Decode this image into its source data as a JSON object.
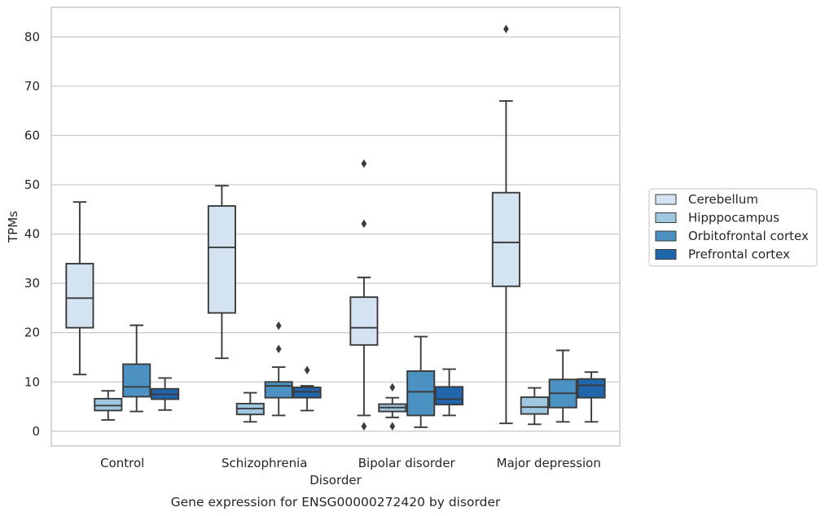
{
  "chart_data": {
    "type": "box",
    "caption": "Gene expression for ENSG00000272420 by disorder",
    "xlabel": "Disorder",
    "ylabel": "TPMs",
    "ylim": [
      -3,
      86
    ],
    "yticks": [
      0,
      10,
      20,
      30,
      40,
      50,
      60,
      70,
      80
    ],
    "categories": [
      "Control",
      "Schizophrenia",
      "Bipolar disorder",
      "Major depression"
    ],
    "legend_position": "right",
    "grid": true,
    "series": [
      {
        "name": "Cerebellum",
        "color": "#d3e3f2",
        "boxes": [
          {
            "wlo": 11.5,
            "q1": 21.0,
            "med": 27.0,
            "q3": 34.0,
            "whi": 46.5,
            "fliers": []
          },
          {
            "wlo": 14.8,
            "q1": 24.0,
            "med": 37.3,
            "q3": 45.7,
            "whi": 49.8,
            "fliers": []
          },
          {
            "wlo": 3.2,
            "q1": 17.5,
            "med": 21.0,
            "q3": 27.2,
            "whi": 31.2,
            "fliers": [
              54.3,
              42.1,
              1.0
            ]
          },
          {
            "wlo": 1.6,
            "q1": 29.4,
            "med": 38.3,
            "q3": 48.4,
            "whi": 67.0,
            "fliers": [
              81.6
            ]
          }
        ]
      },
      {
        "name": "Hipppocampus",
        "color": "#a0c7e0",
        "boxes": [
          {
            "wlo": 2.3,
            "q1": 4.2,
            "med": 5.2,
            "q3": 6.6,
            "whi": 8.2,
            "fliers": []
          },
          {
            "wlo": 1.9,
            "q1": 3.4,
            "med": 4.6,
            "q3": 5.6,
            "whi": 7.8,
            "fliers": []
          },
          {
            "wlo": 2.8,
            "q1": 4.0,
            "med": 4.8,
            "q3": 5.5,
            "whi": 6.8,
            "fliers": [
              8.9,
              1.0
            ]
          },
          {
            "wlo": 1.4,
            "q1": 3.5,
            "med": 4.9,
            "q3": 6.9,
            "whi": 8.8,
            "fliers": []
          }
        ]
      },
      {
        "name": "Orbitofrontal cortex",
        "color": "#4b92c3",
        "boxes": [
          {
            "wlo": 4.0,
            "q1": 7.0,
            "med": 9.0,
            "q3": 13.6,
            "whi": 21.5,
            "fliers": []
          },
          {
            "wlo": 3.2,
            "q1": 6.8,
            "med": 9.2,
            "q3": 10.0,
            "whi": 13.0,
            "fliers": [
              21.4,
              16.7
            ]
          },
          {
            "wlo": 0.8,
            "q1": 3.2,
            "med": 8.0,
            "q3": 12.2,
            "whi": 19.2,
            "fliers": []
          },
          {
            "wlo": 1.9,
            "q1": 4.8,
            "med": 7.7,
            "q3": 10.5,
            "whi": 16.4,
            "fliers": []
          }
        ]
      },
      {
        "name": "Prefrontal cortex",
        "color": "#2166ac",
        "boxes": [
          {
            "wlo": 4.3,
            "q1": 6.5,
            "med": 7.5,
            "q3": 8.6,
            "whi": 10.8,
            "fliers": []
          },
          {
            "wlo": 4.2,
            "q1": 6.8,
            "med": 8.0,
            "q3": 8.9,
            "whi": 9.2,
            "fliers": [
              12.4
            ]
          },
          {
            "wlo": 3.2,
            "q1": 5.4,
            "med": 6.5,
            "q3": 9.0,
            "whi": 12.6,
            "fliers": []
          },
          {
            "wlo": 1.9,
            "q1": 6.8,
            "med": 9.3,
            "q3": 10.6,
            "whi": 12.0,
            "fliers": []
          }
        ]
      }
    ]
  }
}
